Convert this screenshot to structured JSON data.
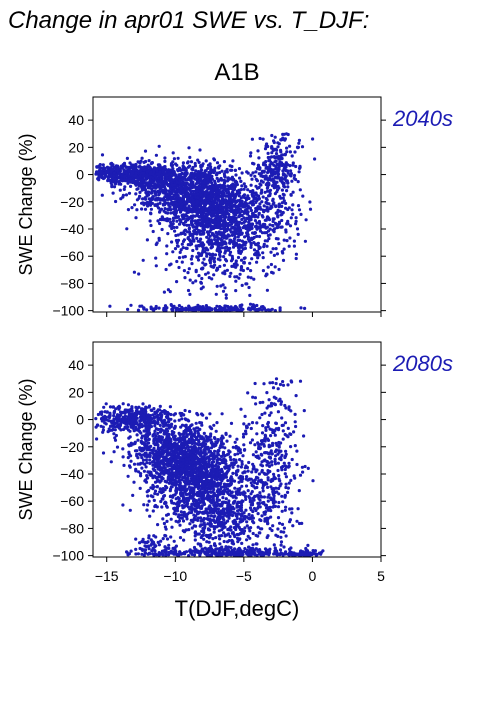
{
  "page_title": "Change in apr01 SWE vs. T_DJF:",
  "scenario_label": "A1B",
  "accent_color": "#1c1cb4",
  "chart_data": [
    {
      "type": "scatter",
      "panel_label": "2040s",
      "xlabel": "",
      "ylabel": "SWE Change (%)",
      "xlim": [
        -16,
        5
      ],
      "ylim": [
        -101,
        57
      ],
      "yticks": [
        40,
        20,
        0,
        -20,
        -40,
        -60,
        -80,
        -100
      ],
      "xticks": [],
      "series_color": "#1c1cb4",
      "clusters": [
        {
          "xc": -12.5,
          "yc": 0,
          "sx": 1.8,
          "sy": 4,
          "n": 600
        },
        {
          "xc": -9.0,
          "yc": -12,
          "sx": 2.0,
          "sy": 10,
          "n": 900
        },
        {
          "xc": -7.0,
          "yc": -30,
          "sx": 1.8,
          "sy": 14,
          "n": 900
        },
        {
          "xc": -6.5,
          "yc": -55,
          "sx": 2.2,
          "sy": 18,
          "n": 350
        },
        {
          "xc": -7.5,
          "yc": -99,
          "sx": 2.5,
          "sy": 1.5,
          "n": 200
        },
        {
          "xc": -3.0,
          "yc": -15,
          "sx": 1.0,
          "sy": 25,
          "n": 300
        },
        {
          "xc": -2.5,
          "yc": 5,
          "sx": 0.8,
          "sy": 8,
          "n": 120
        },
        {
          "xc": -15.0,
          "yc": 2,
          "sx": 0.8,
          "sy": 2,
          "n": 80
        }
      ]
    },
    {
      "type": "scatter",
      "panel_label": "2080s",
      "xlabel": "T(DJF,degC)",
      "ylabel": "SWE Change (%)",
      "xlim": [
        -16,
        5
      ],
      "ylim": [
        -101,
        57
      ],
      "yticks": [
        40,
        20,
        0,
        -20,
        -40,
        -60,
        -80,
        -100
      ],
      "xticks": [
        -15,
        -10,
        -5,
        0,
        5
      ],
      "series_color": "#1c1cb4",
      "clusters": [
        {
          "xc": -13.0,
          "yc": 0,
          "sx": 1.5,
          "sy": 5,
          "n": 400
        },
        {
          "xc": -10.0,
          "yc": -25,
          "sx": 1.8,
          "sy": 12,
          "n": 900
        },
        {
          "xc": -8.0,
          "yc": -45,
          "sx": 1.8,
          "sy": 15,
          "n": 900
        },
        {
          "xc": -6.5,
          "yc": -70,
          "sx": 2.0,
          "sy": 14,
          "n": 500
        },
        {
          "xc": -6.0,
          "yc": -98,
          "sx": 2.8,
          "sy": 2,
          "n": 300
        },
        {
          "xc": -3.0,
          "yc": -30,
          "sx": 1.0,
          "sy": 30,
          "n": 350
        },
        {
          "xc": -0.5,
          "yc": -99,
          "sx": 0.6,
          "sy": 1,
          "n": 60
        },
        {
          "xc": -11.5,
          "yc": -95,
          "sx": 1.0,
          "sy": 4,
          "n": 60
        }
      ]
    }
  ]
}
